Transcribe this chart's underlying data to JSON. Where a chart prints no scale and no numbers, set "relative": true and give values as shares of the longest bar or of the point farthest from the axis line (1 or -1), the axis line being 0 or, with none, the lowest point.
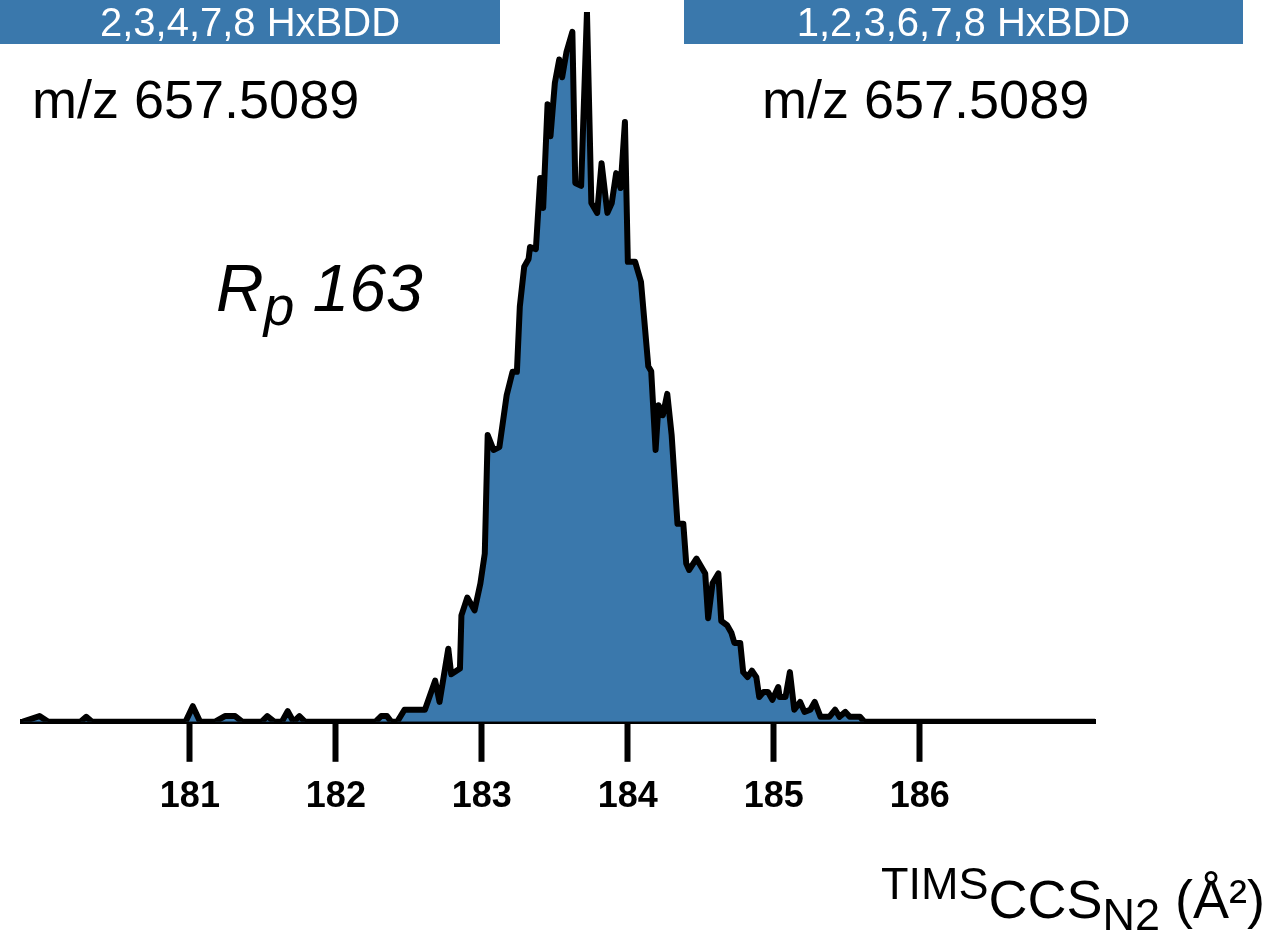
{
  "chart_data": {
    "type": "area",
    "relative": true,
    "xlabel": "$^{TIMS}$CCS$_{N2}$ (Å²)",
    "annotations": [
      "2,3,4,7,8 HxBDD",
      "1,2,3,6,7,8 HxBDD",
      "m/z 657.5089",
      "m/z 657.5089",
      "R$_{p}$ 163"
    ],
    "xlim": [
      179.85,
      187.2
    ],
    "xticks": [
      181,
      182,
      183,
      184,
      185,
      186
    ],
    "grid": false,
    "legend": false,
    "marker": "none",
    "x": [
      179.85,
      179.97,
      180.03,
      180.25,
      180.29,
      180.33,
      180.97,
      181.02,
      181.07,
      181.17,
      181.24,
      181.31,
      181.36,
      181.49,
      181.53,
      181.58,
      181.63,
      181.67,
      181.71,
      181.75,
      181.79,
      182.27,
      182.31,
      182.35,
      182.38,
      182.42,
      182.47,
      182.61,
      182.68,
      182.71,
      182.77,
      182.79,
      182.85,
      182.86,
      182.9,
      182.95,
      182.99,
      183.02,
      183.04,
      183.08,
      183.12,
      183.17,
      183.21,
      183.24,
      183.26,
      183.29,
      183.32,
      183.33,
      183.37,
      183.4,
      183.42,
      183.45,
      183.47,
      183.5,
      183.53,
      183.55,
      183.58,
      183.62,
      183.64,
      183.68,
      183.72,
      183.75,
      183.79,
      183.82,
      183.84,
      183.86,
      183.89,
      183.92,
      183.95,
      183.98,
      184.0,
      184.05,
      184.09,
      184.14,
      184.16,
      184.19,
      184.21,
      184.24,
      184.27,
      184.3,
      184.34,
      184.38,
      184.4,
      184.42,
      184.47,
      184.53,
      184.55,
      184.58,
      184.62,
      184.64,
      184.68,
      184.71,
      184.73,
      184.77,
      184.79,
      184.82,
      184.85,
      184.88,
      184.9,
      184.93,
      184.96,
      184.99,
      185.03,
      185.04,
      185.08,
      185.11,
      185.14,
      185.18,
      185.21,
      185.25,
      185.28,
      185.32,
      185.38,
      185.42,
      185.45,
      185.49,
      185.52,
      185.59,
      185.62,
      187.2
    ],
    "series": [
      {
        "color": "#3a78ac",
        "values": [
          0,
          0.008,
          0,
          0,
          0.007,
          0,
          0,
          0.022,
          0,
          0,
          0.008,
          0.008,
          0,
          0,
          0.008,
          0,
          0,
          0.015,
          0,
          0.008,
          0,
          0,
          0.008,
          0.008,
          0,
          0,
          0.017,
          0.017,
          0.058,
          0.028,
          0.103,
          0.067,
          0.075,
          0.15,
          0.175,
          0.157,
          0.195,
          0.237,
          0.404,
          0.383,
          0.387,
          0.46,
          0.493,
          0.493,
          0.585,
          0.641,
          0.652,
          0.669,
          0.666,
          0.766,
          0.724,
          0.87,
          0.825,
          0.9,
          0.933,
          0.908,
          0.944,
          0.972,
          0.759,
          0.755,
          1,
          0.731,
          0.717,
          0.787,
          0.752,
          0.717,
          0.731,
          0.773,
          0.752,
          0.845,
          0.648,
          0.648,
          0.62,
          0.501,
          0.494,
          0.383,
          0.446,
          0.432,
          0.462,
          0.404,
          0.279,
          0.279,
          0.223,
          0.214,
          0.23,
          0.209,
          0.146,
          0.195,
          0.209,
          0.142,
          0.136,
          0.125,
          0.111,
          0.111,
          0.07,
          0.063,
          0.072,
          0.063,
          0.035,
          0.042,
          0.042,
          0.031,
          0.049,
          0.035,
          0.035,
          0.07,
          0.017,
          0.028,
          0.014,
          0.017,
          0.028,
          0.007,
          0.007,
          0.017,
          0.007,
          0.014,
          0.007,
          0.007,
          0,
          0
        ]
      }
    ]
  }
}
